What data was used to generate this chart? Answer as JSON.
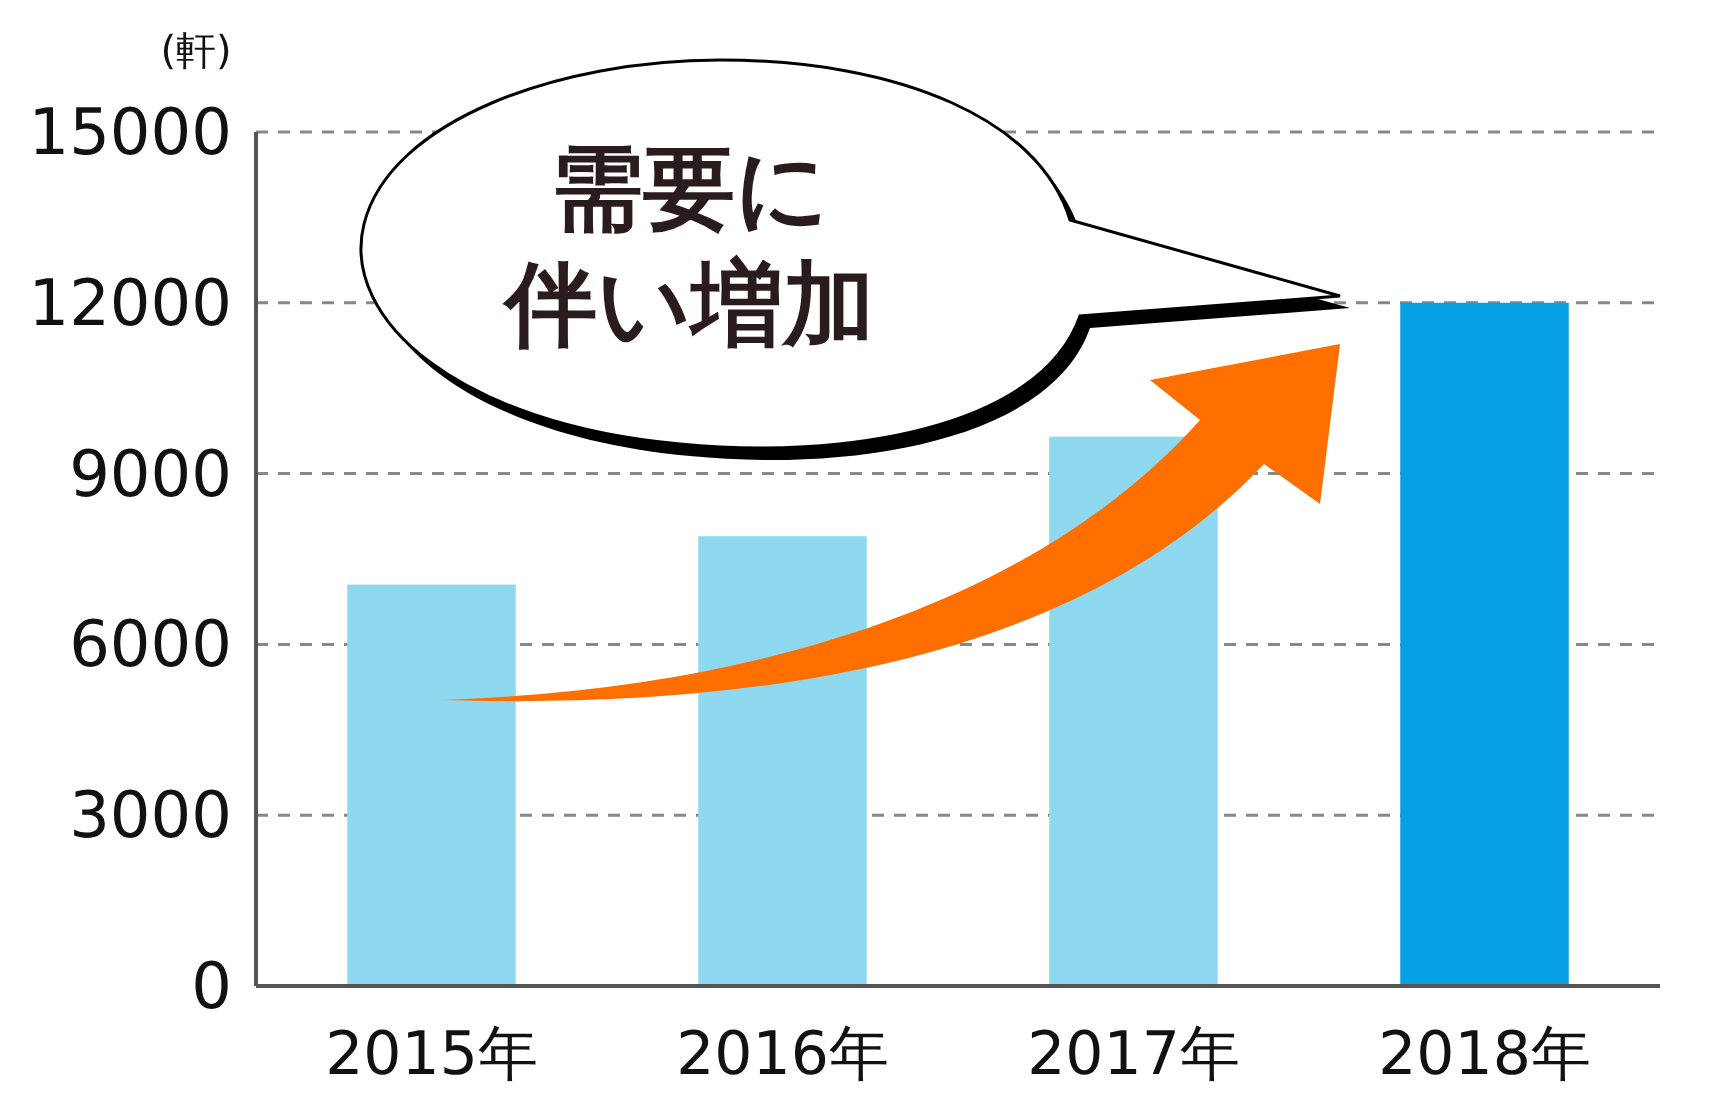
{
  "chart_data": {
    "type": "bar",
    "ylabel": "(軒)",
    "categories": [
      "2015年",
      "2016年",
      "2017年",
      "2018年"
    ],
    "values": [
      7050,
      7900,
      9650,
      12000
    ],
    "colors": [
      "#8fd9f0",
      "#8fd9f0",
      "#8fd9f0",
      "#079fe3"
    ],
    "ylim": [
      0,
      15000
    ],
    "yticks": [
      0,
      3000,
      6000,
      9000,
      12000,
      15000
    ],
    "grid": "y",
    "annotations": [
      "需要に",
      "伴い増加"
    ]
  }
}
